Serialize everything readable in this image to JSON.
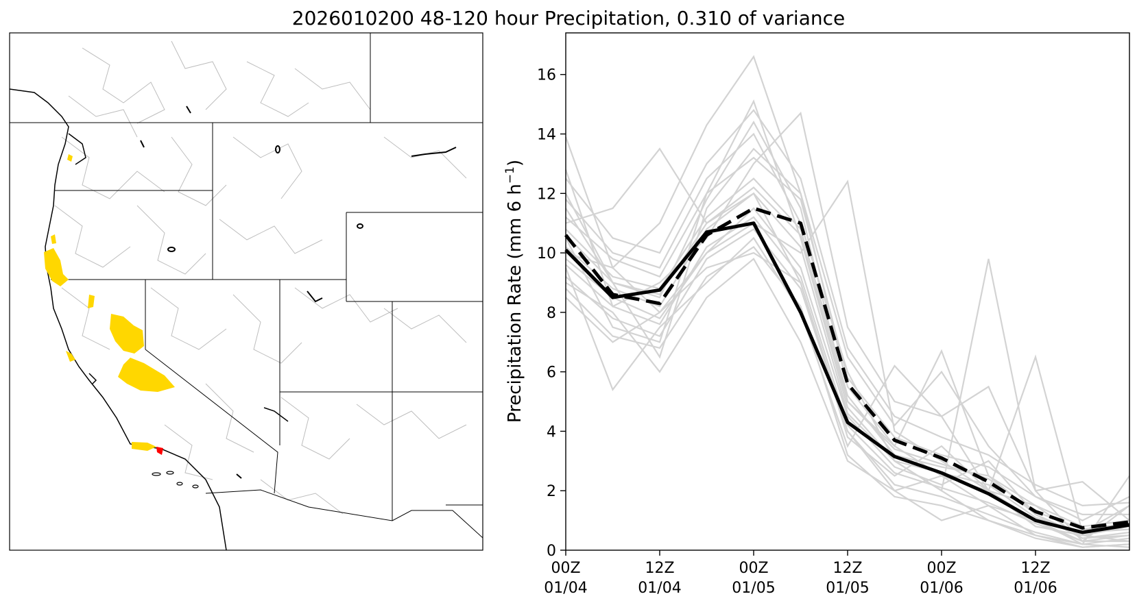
{
  "figure": {
    "title": "2026010200 48-120 hour Precipitation, 0.310 of variance"
  },
  "map_panel": {
    "description_region": "Western United States",
    "colors": {
      "highlight": "#FFD700",
      "extreme": "#FF0000",
      "borders": "#000000",
      "basins": "#bdbdbd"
    }
  },
  "chart_data": {
    "type": "line",
    "title": "",
    "xlabel": "",
    "ylabel_main": "Precipitation Rate (mm 6 h",
    "ylabel_sup": "−1",
    "ylabel_end": ")",
    "ylim": [
      0,
      17.4
    ],
    "xlim": [
      0,
      36
    ],
    "yticks": [
      0,
      2,
      4,
      6,
      8,
      10,
      12,
      14,
      16
    ],
    "xticks": [
      {
        "value": 0,
        "top": "00Z",
        "bottom": "01/04"
      },
      {
        "value": 6,
        "top": "12Z",
        "bottom": "01/04"
      },
      {
        "value": 12,
        "top": "00Z",
        "bottom": "01/05"
      },
      {
        "value": 18,
        "top": "12Z",
        "bottom": "01/05"
      },
      {
        "value": 24,
        "top": "00Z",
        "bottom": "01/06"
      },
      {
        "value": 30,
        "top": "12Z",
        "bottom": "01/06"
      }
    ],
    "x": [
      0,
      3,
      6,
      9,
      12,
      15,
      18,
      21,
      24,
      27,
      30,
      33,
      36
    ],
    "series": [
      {
        "name": "mean",
        "style": "solid",
        "color": "#000000",
        "values": [
          10.1,
          8.5,
          8.75,
          10.7,
          11.0,
          8.0,
          4.3,
          3.15,
          2.6,
          1.9,
          1.0,
          0.6,
          0.85
        ]
      },
      {
        "name": "selected",
        "style": "dashed",
        "color": "#000000",
        "values": [
          10.6,
          8.6,
          8.3,
          10.6,
          11.5,
          11.0,
          5.6,
          3.7,
          3.1,
          2.3,
          1.3,
          0.75,
          0.95
        ]
      }
    ],
    "ensemble_color": "#d3d3d3",
    "ensemble": [
      [
        13.9,
        9.5,
        11.0,
        14.3,
        16.6,
        12.0,
        6.5,
        4.2,
        6.0,
        3.5,
        1.8,
        1.0,
        1.8
      ],
      [
        12.8,
        8.2,
        9.0,
        10.5,
        13.0,
        14.7,
        7.5,
        5.0,
        4.5,
        5.5,
        2.0,
        2.3,
        1.0
      ],
      [
        11.5,
        9.0,
        8.5,
        11.8,
        14.4,
        11.5,
        5.0,
        3.5,
        6.7,
        2.5,
        1.2,
        0.5,
        0.8
      ],
      [
        11.0,
        11.5,
        13.5,
        11.0,
        12.0,
        9.0,
        4.0,
        2.0,
        2.5,
        2.0,
        6.5,
        0.6,
        1.5
      ],
      [
        10.5,
        7.5,
        7.0,
        12.0,
        15.1,
        10.5,
        4.8,
        3.0,
        2.0,
        9.8,
        2.0,
        0.3,
        0.3
      ],
      [
        10.0,
        9.5,
        8.0,
        10.0,
        11.0,
        10.0,
        12.4,
        4.0,
        3.0,
        2.0,
        1.0,
        0.2,
        2.5
      ],
      [
        9.5,
        5.4,
        7.5,
        9.0,
        10.5,
        8.0,
        3.5,
        6.2,
        4.5,
        2.0,
        1.5,
        0.4,
        0.5
      ],
      [
        9.0,
        8.0,
        6.0,
        8.5,
        9.8,
        7.0,
        3.0,
        2.0,
        1.0,
        1.5,
        0.5,
        0.2,
        0.1
      ],
      [
        12.0,
        9.0,
        6.5,
        11.5,
        13.5,
        12.0,
        5.5,
        3.5,
        2.5,
        1.5,
        1.0,
        0.3,
        1.5
      ],
      [
        8.5,
        7.0,
        8.0,
        9.5,
        10.0,
        9.0,
        3.8,
        2.5,
        3.5,
        2.0,
        0.8,
        0.5,
        0.3
      ],
      [
        11.8,
        10.0,
        9.5,
        12.5,
        14.0,
        11.0,
        6.0,
        3.0,
        2.0,
        1.0,
        0.5,
        0.1,
        0.2
      ],
      [
        9.8,
        8.5,
        7.8,
        10.0,
        11.5,
        9.5,
        4.5,
        2.8,
        2.2,
        3.0,
        1.2,
        0.4,
        0.6
      ],
      [
        10.8,
        9.2,
        8.8,
        11.2,
        12.5,
        10.8,
        5.2,
        3.2,
        2.8,
        2.5,
        1.5,
        0.8,
        1.0
      ],
      [
        9.2,
        7.8,
        7.2,
        9.8,
        10.8,
        8.8,
        4.0,
        2.2,
        1.8,
        1.2,
        0.6,
        0.2,
        0.4
      ],
      [
        11.2,
        9.8,
        9.2,
        12.0,
        13.2,
        11.8,
        5.8,
        3.8,
        3.2,
        2.8,
        1.8,
        1.2,
        1.2
      ],
      [
        10.2,
        8.8,
        8.2,
        10.8,
        12.0,
        10.2,
        4.6,
        3.0,
        2.6,
        2.2,
        1.1,
        0.6,
        0.7
      ],
      [
        8.8,
        7.2,
        6.8,
        9.2,
        10.2,
        8.2,
        3.2,
        1.8,
        1.5,
        1.0,
        0.4,
        0.1,
        0.2
      ],
      [
        12.5,
        10.5,
        10.0,
        13.0,
        14.8,
        12.5,
        6.8,
        4.5,
        3.8,
        3.2,
        2.2,
        1.5,
        1.6
      ],
      [
        10.6,
        9.0,
        8.6,
        11.0,
        12.2,
        10.6,
        5.0,
        3.4,
        2.9,
        2.4,
        1.3,
        0.7,
        0.9
      ],
      [
        9.6,
        8.2,
        7.6,
        10.2,
        11.2,
        9.2,
        4.2,
        2.6,
        2.1,
        1.6,
        0.9,
        0.3,
        0.5
      ]
    ]
  }
}
